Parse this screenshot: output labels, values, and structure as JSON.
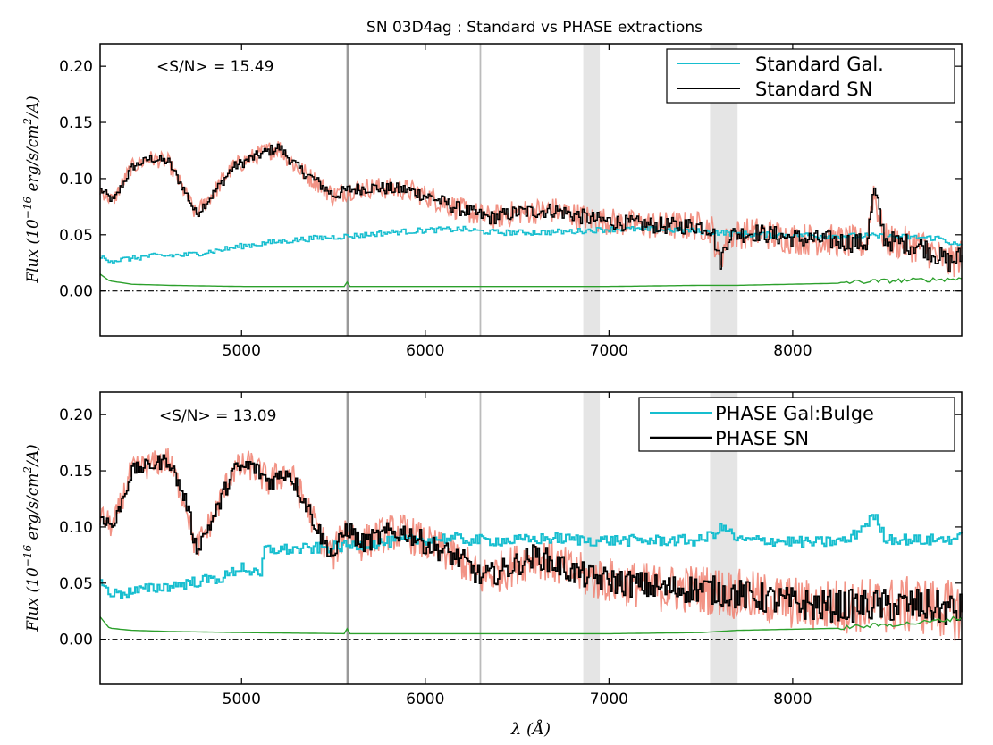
{
  "figure_title": "SN 03D4ag : Standard vs PHASE extractions",
  "xlabel": "λ (Å)",
  "chart_data": [
    {
      "type": "line",
      "title": "SN 03D4ag : Standard vs PHASE extractions",
      "xlabel": "",
      "ylabel": "Flux (10^-16 erg/s/cm^2/A)",
      "ylabel_main": "Flux (10",
      "ylabel_exp": "−16",
      "ylabel_rest": " erg/s/cm",
      "ylabel_exp2": "2",
      "ylabel_end": "/A)",
      "xlim": [
        4230,
        8920
      ],
      "ylim": [
        -0.04,
        0.22
      ],
      "xticks": [
        5000,
        6000,
        7000,
        8000
      ],
      "xtick_labels": [
        "5000",
        "6000",
        "7000",
        "8000"
      ],
      "yticks": [
        0.0,
        0.05,
        0.1,
        0.15,
        0.2
      ],
      "ytick_labels": [
        "0.00",
        "0.05",
        "0.10",
        "0.15",
        "0.20"
      ],
      "annotation": "<S/N> = 15.49",
      "legend_position": "top-right",
      "legend": [
        "Standard Gal.",
        "Standard SN"
      ],
      "vlines": [
        5577,
        6300
      ],
      "bands": [
        [
          6860,
          6950
        ],
        [
          7550,
          7700
        ]
      ],
      "zero_line": 0.0,
      "series": [
        {
          "name": "Standard Gal.",
          "color": "#17becf",
          "x": [
            4230,
            4300,
            4500,
            4700,
            4900,
            5000,
            5200,
            5400,
            5600,
            5800,
            6000,
            6200,
            6300,
            6400,
            6600,
            6800,
            7000,
            7200,
            7400,
            7600,
            7800,
            8000,
            8200,
            8400,
            8600,
            8800,
            8900
          ],
          "y": [
            0.03,
            0.027,
            0.031,
            0.032,
            0.037,
            0.04,
            0.044,
            0.047,
            0.049,
            0.052,
            0.054,
            0.055,
            0.053,
            0.052,
            0.052,
            0.053,
            0.055,
            0.055,
            0.054,
            0.052,
            0.05,
            0.05,
            0.049,
            0.049,
            0.048,
            0.047,
            0.04
          ]
        },
        {
          "name": "Standard SN",
          "color": "#000000",
          "x": [
            4230,
            4300,
            4400,
            4500,
            4600,
            4700,
            4750,
            4850,
            4950,
            5050,
            5150,
            5200,
            5300,
            5400,
            5500,
            5580,
            5700,
            5900,
            6050,
            6200,
            6350,
            6500,
            6700,
            6900,
            7100,
            7300,
            7500,
            7560,
            7600,
            7650,
            7800,
            8000,
            8200,
            8400,
            8440,
            8500,
            8700,
            8850,
            8900
          ],
          "y": [
            0.09,
            0.08,
            0.11,
            0.118,
            0.115,
            0.085,
            0.068,
            0.088,
            0.11,
            0.118,
            0.125,
            0.128,
            0.11,
            0.098,
            0.085,
            0.09,
            0.092,
            0.09,
            0.082,
            0.072,
            0.065,
            0.07,
            0.072,
            0.064,
            0.06,
            0.058,
            0.058,
            0.055,
            0.025,
            0.05,
            0.052,
            0.047,
            0.045,
            0.042,
            0.09,
            0.045,
            0.04,
            0.025,
            0.03
          ]
        },
        {
          "name": "error",
          "color": "#2ca02c",
          "x": [
            4230,
            4280,
            4400,
            4600,
            5000,
            5570,
            5577,
            5590,
            6000,
            6500,
            7000,
            7500,
            7700,
            8000,
            8300,
            8500,
            8700,
            8900
          ],
          "y": [
            0.015,
            0.009,
            0.006,
            0.005,
            0.004,
            0.004,
            0.01,
            0.004,
            0.004,
            0.004,
            0.004,
            0.005,
            0.005,
            0.006,
            0.007,
            0.008,
            0.009,
            0.01
          ]
        }
      ]
    },
    {
      "type": "line",
      "title": "",
      "xlabel": "λ (Å)",
      "ylabel": "Flux (10^-16 erg/s/cm^2/A)",
      "ylabel_main": "Flux (10",
      "ylabel_exp": "−16",
      "ylabel_rest": " erg/s/cm",
      "ylabel_exp2": "2",
      "ylabel_end": "/A)",
      "xlim": [
        4230,
        8920
      ],
      "ylim": [
        -0.04,
        0.22
      ],
      "xticks": [
        5000,
        6000,
        7000,
        8000
      ],
      "xtick_labels": [
        "5000",
        "6000",
        "7000",
        "8000"
      ],
      "yticks": [
        0.0,
        0.05,
        0.1,
        0.15,
        0.2
      ],
      "ytick_labels": [
        "0.00",
        "0.05",
        "0.10",
        "0.15",
        "0.20"
      ],
      "annotation": "<S/N> = 13.09",
      "legend_position": "top-right",
      "legend": [
        "PHASE Gal:Bulge",
        "PHASE SN"
      ],
      "vlines": [
        5577,
        6300
      ],
      "bands": [
        [
          6860,
          6950
        ],
        [
          7550,
          7700
        ]
      ],
      "zero_line": 0.0,
      "series": [
        {
          "name": "PHASE Gal:Bulge",
          "color": "#17becf",
          "x": [
            4230,
            4300,
            4500,
            4700,
            4900,
            5000,
            5100,
            5120,
            5300,
            5500,
            5700,
            5900,
            6100,
            6300,
            6500,
            6700,
            6900,
            7100,
            7300,
            7500,
            7620,
            7700,
            7900,
            8100,
            8300,
            8440,
            8500,
            8700,
            8900
          ],
          "y": [
            0.05,
            0.04,
            0.045,
            0.05,
            0.055,
            0.065,
            0.055,
            0.08,
            0.08,
            0.082,
            0.085,
            0.088,
            0.09,
            0.088,
            0.088,
            0.09,
            0.088,
            0.088,
            0.088,
            0.088,
            0.1,
            0.088,
            0.088,
            0.086,
            0.088,
            0.11,
            0.09,
            0.088,
            0.09
          ]
        },
        {
          "name": "PHASE SN",
          "color": "#000000",
          "x": [
            4230,
            4300,
            4400,
            4500,
            4600,
            4700,
            4750,
            4850,
            4950,
            5050,
            5150,
            5250,
            5350,
            5450,
            5500,
            5570,
            5650,
            5800,
            5900,
            6000,
            6100,
            6200,
            6300,
            6400,
            6600,
            6800,
            6900,
            7100,
            7300,
            7500,
            7700,
            7900,
            8100,
            8300,
            8500,
            8700,
            8900
          ],
          "y": [
            0.11,
            0.1,
            0.15,
            0.155,
            0.16,
            0.12,
            0.08,
            0.11,
            0.15,
            0.155,
            0.14,
            0.15,
            0.12,
            0.085,
            0.075,
            0.1,
            0.085,
            0.095,
            0.095,
            0.085,
            0.078,
            0.07,
            0.055,
            0.06,
            0.075,
            0.06,
            0.055,
            0.05,
            0.045,
            0.045,
            0.04,
            0.035,
            0.03,
            0.03,
            0.03,
            0.03,
            0.025
          ]
        },
        {
          "name": "error",
          "color": "#2ca02c",
          "x": [
            4230,
            4280,
            4400,
            4600,
            5000,
            5570,
            5577,
            5590,
            6000,
            6500,
            7000,
            7500,
            7700,
            8000,
            8300,
            8500,
            8700,
            8800,
            8900
          ],
          "y": [
            0.02,
            0.01,
            0.008,
            0.007,
            0.006,
            0.005,
            0.012,
            0.005,
            0.005,
            0.005,
            0.005,
            0.006,
            0.008,
            0.009,
            0.01,
            0.012,
            0.014,
            0.016,
            0.018
          ]
        }
      ]
    }
  ]
}
